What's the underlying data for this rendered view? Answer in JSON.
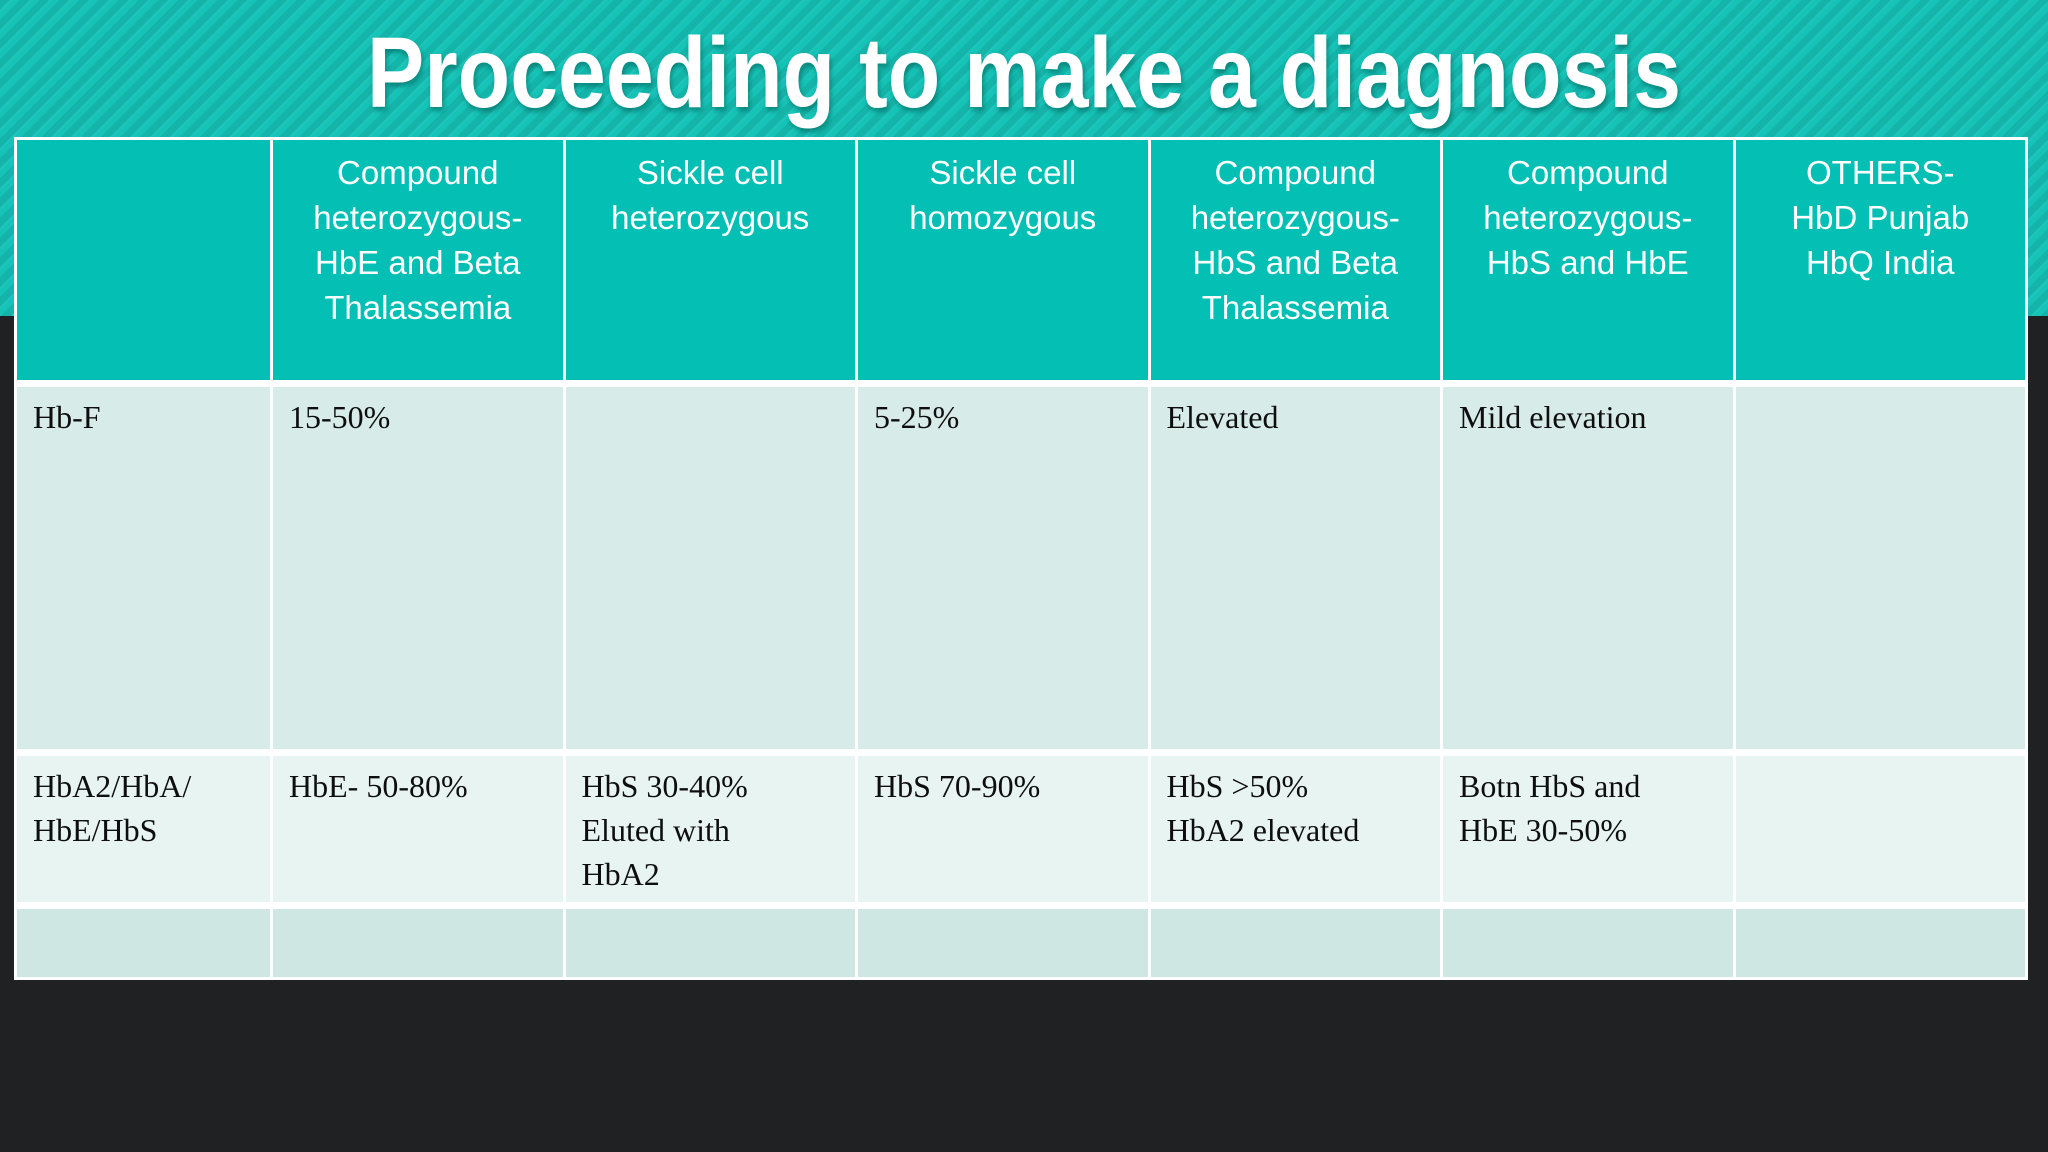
{
  "slide": {
    "title": "Proceeding to make a diagnosis",
    "colors": {
      "band_teal": "#16c3b7",
      "band_stripe": "#0fb3a8",
      "header_fill": "#04c0b4",
      "header_text": "#ffffff",
      "row_band_1": "#d7ebe8",
      "row_band_2": "#e7f4f1",
      "row_band_3": "#cfe7e3",
      "grid_line": "#ffffff",
      "cell_text": "#0e0e0e",
      "backdrop": "#202122"
    }
  },
  "table": {
    "columns": [
      "",
      "Compound\nheterozygous-\nHbE and Beta\nThalassemia",
      "Sickle cell\nheterozygous",
      "Sickle cell\nhomozygous",
      "Compound\nheterozygous-\nHbS and Beta\nThalassemia",
      "Compound\nheterozygous-\nHbS and HbE",
      "OTHERS-\nHbD Punjab\nHbQ India"
    ],
    "rows": [
      {
        "label": "Hb-F",
        "cells": [
          "15-50%",
          "",
          "5-25%",
          "Elevated",
          "Mild elevation",
          ""
        ]
      },
      {
        "label": "HbA2/HbA/\nHbE/HbS",
        "cells": [
          "HbE- 50-80%",
          "HbS 30-40%\nEluted with\nHbA2",
          "HbS 70-90%",
          "HbS >50%\nHbA2 elevated",
          "Botn HbS and\nHbE 30-50%",
          ""
        ]
      },
      {
        "label": "",
        "cells": [
          "",
          "",
          "",
          "",
          "",
          ""
        ]
      }
    ]
  }
}
